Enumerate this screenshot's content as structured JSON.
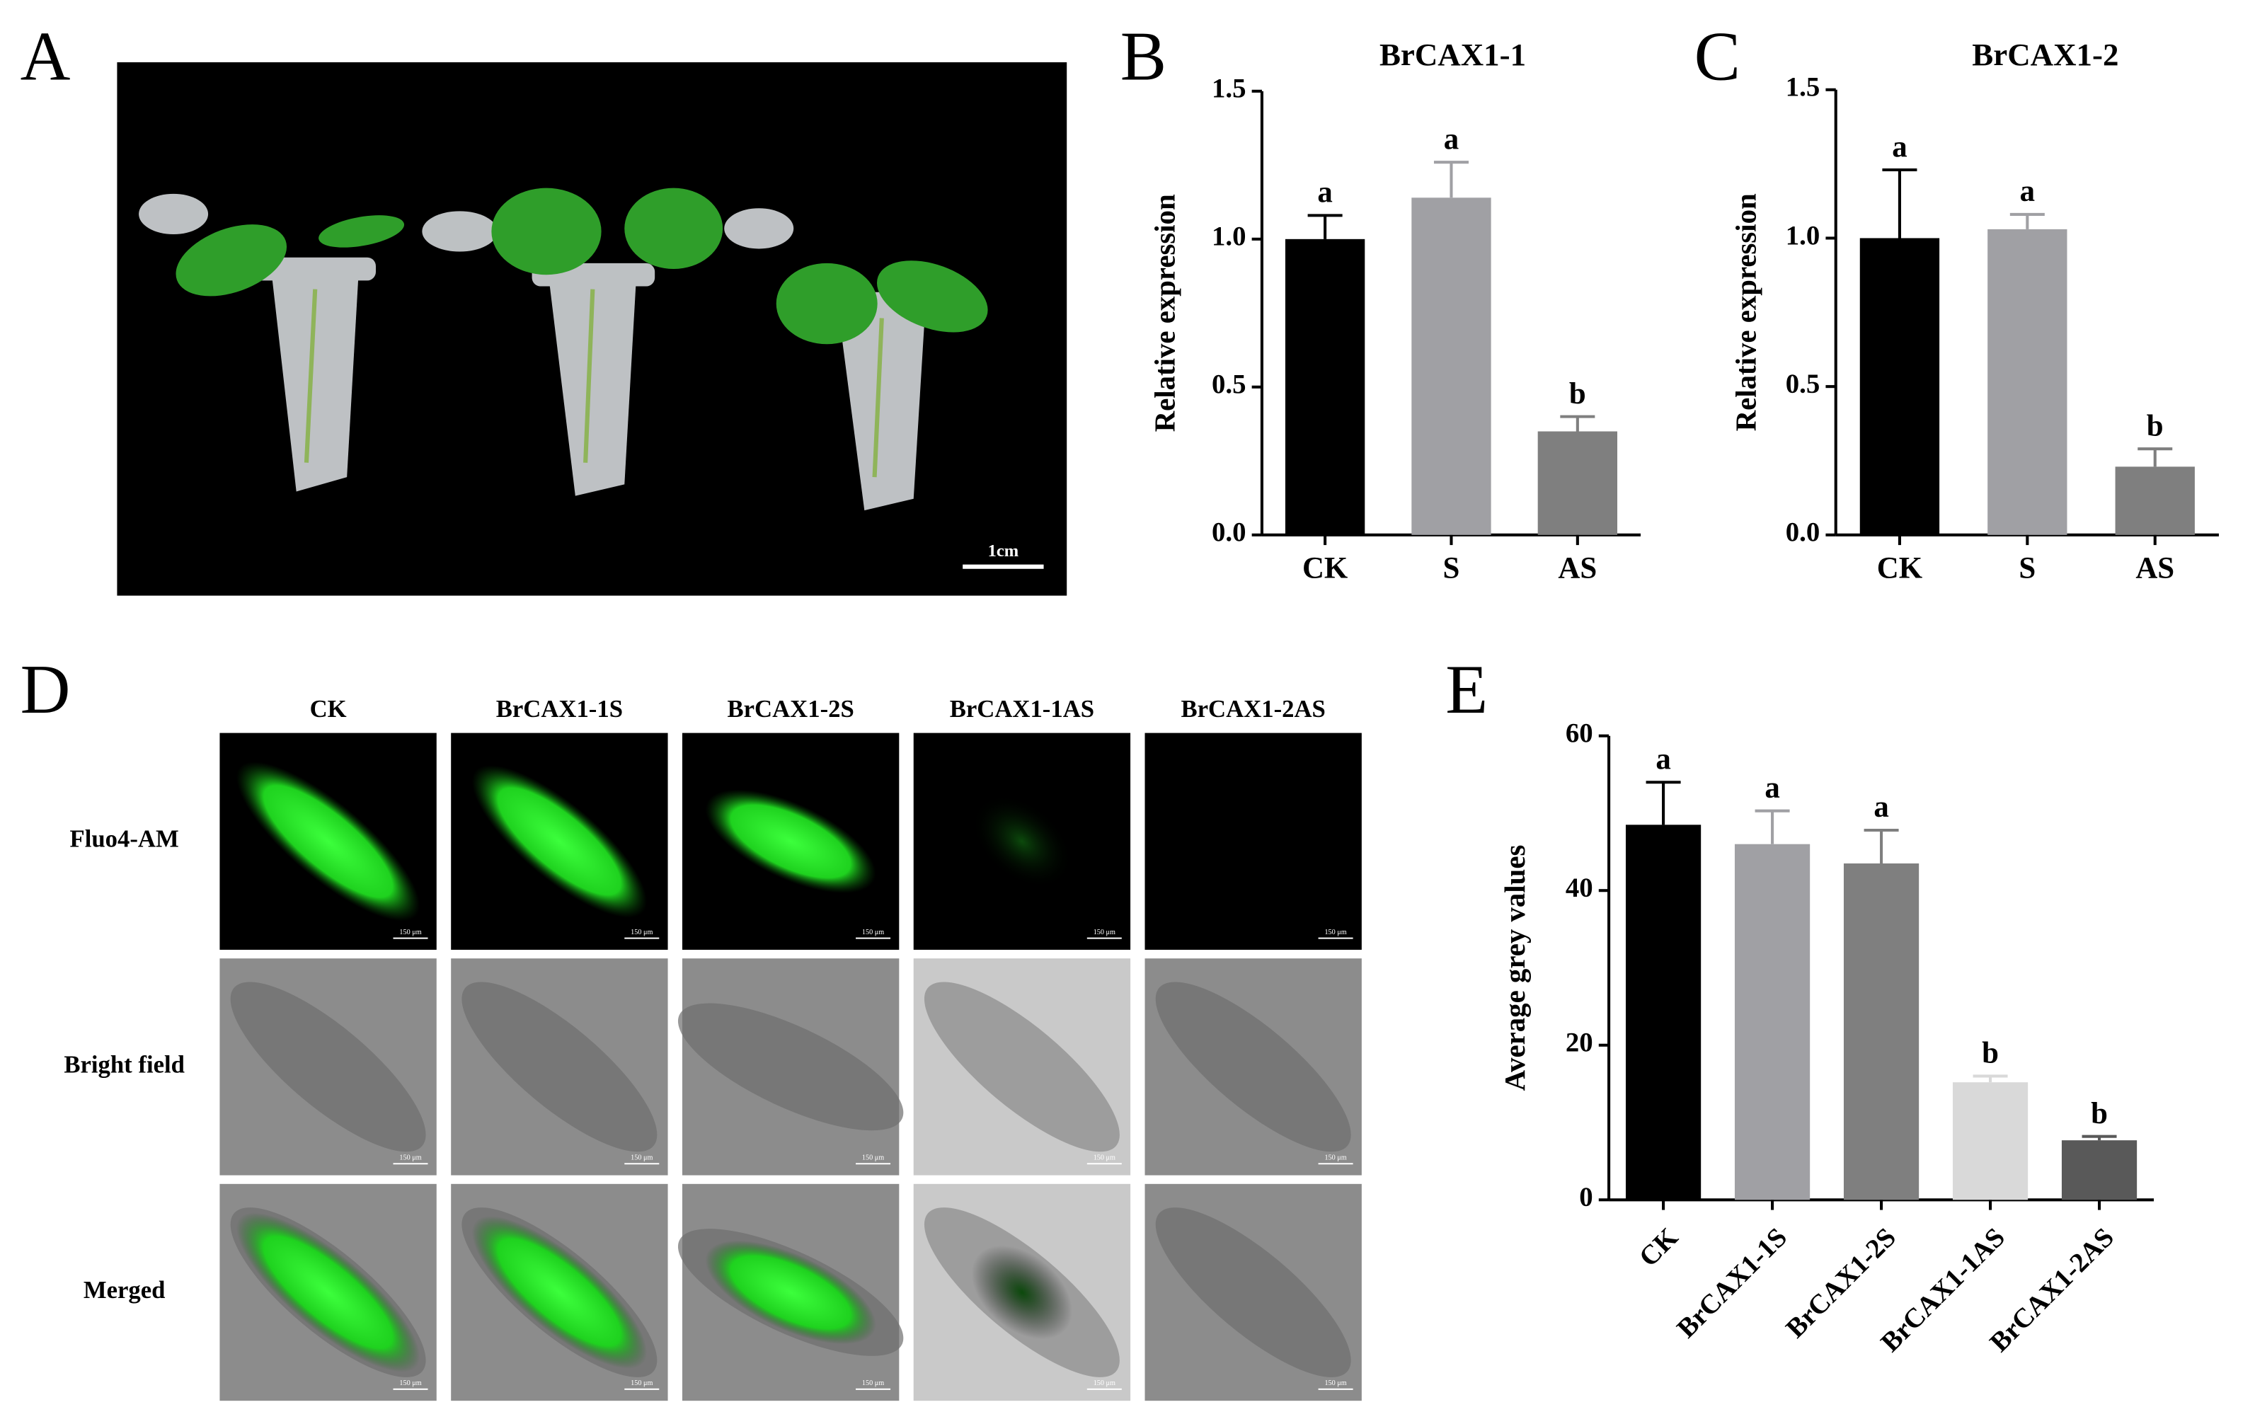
{
  "panel_labels": [
    "A",
    "B",
    "C",
    "D",
    "E"
  ],
  "photo_scale": "1cm",
  "micro": {
    "columns": [
      "CK",
      "BrCAX1-1S",
      "BrCAX1-2S",
      "BrCAX1-1AS",
      "BrCAX1-2AS"
    ],
    "rows": [
      "Fluo4-AM",
      "Bright field",
      "Merged"
    ],
    "scale": "150 μm"
  },
  "chart_data": [
    {
      "type": "bar",
      "title": "BrCAX1-1",
      "y_label": "Relative expression",
      "categories": [
        "CK",
        "S",
        "AS"
      ],
      "values": [
        1.0,
        1.14,
        0.35
      ],
      "errors": [
        0.08,
        0.12,
        0.05
      ],
      "annotations": [
        "a",
        "a",
        "b"
      ],
      "colors": [
        "#000000",
        "#a0a0a4",
        "#7f7f7f"
      ],
      "ylim": [
        0,
        1.5
      ],
      "yticks": [
        {
          "value": 0,
          "label": "0.0"
        },
        0.5,
        {
          "value": 1,
          "label": "1.0"
        },
        1.5
      ]
    },
    {
      "type": "bar",
      "title": "BrCAX1-2",
      "y_label": "Relative expression",
      "categories": [
        "CK",
        "S",
        "AS"
      ],
      "values": [
        1.0,
        1.03,
        0.23
      ],
      "errors": [
        0.23,
        0.05,
        0.06
      ],
      "annotations": [
        "a",
        "a",
        "b"
      ],
      "colors": [
        "#000000",
        "#a0a0a4",
        "#7f7f7f"
      ],
      "ylim": [
        0,
        1.5
      ],
      "yticks": [
        {
          "value": 0,
          "label": "0.0"
        },
        0.5,
        {
          "value": 1,
          "label": "1.0"
        },
        1.5
      ]
    },
    {
      "type": "bar",
      "y_label": "Average grey values",
      "categories": [
        "CK",
        "BrCAX1-1S",
        "BrCAX1-2S",
        "BrCAX1-1AS",
        "BrCAX1-2AS"
      ],
      "values": [
        48.5,
        46,
        43.5,
        15.2,
        7.7
      ],
      "errors": [
        5.5,
        4.3,
        4.3,
        0.8,
        0.5
      ],
      "annotations": [
        "a",
        "a",
        "a",
        "b",
        "b"
      ],
      "colors": [
        "#000000",
        "#a0a0a4",
        "#7f7f7f",
        "#d9d9d9",
        "#595959"
      ],
      "ylim": [
        0,
        60
      ],
      "yticks": [
        0,
        20,
        40,
        60
      ]
    }
  ]
}
